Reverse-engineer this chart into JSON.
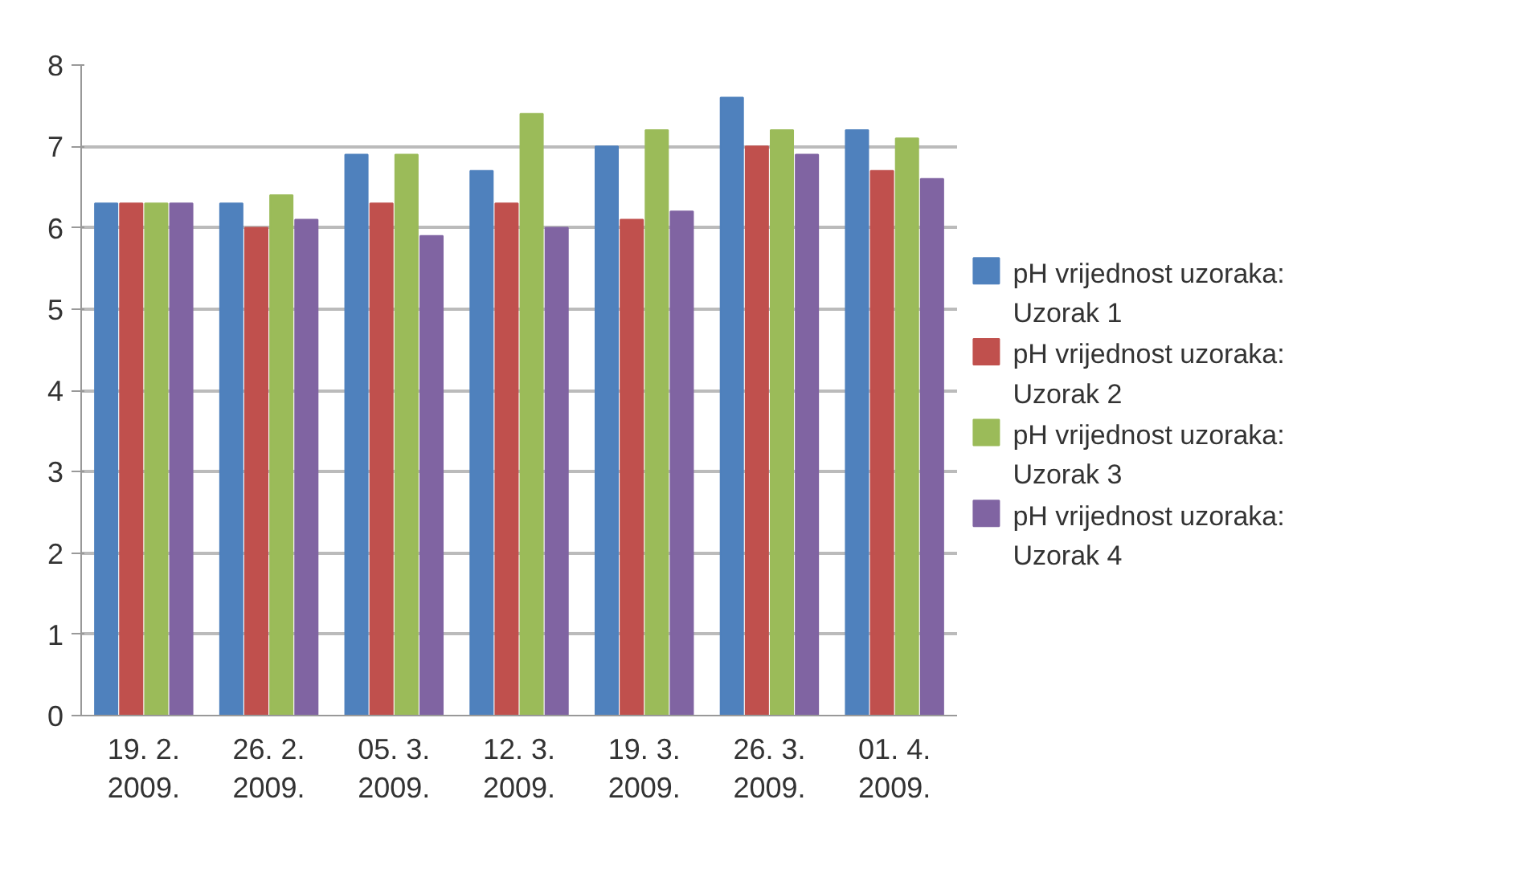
{
  "chart_data": {
    "type": "bar",
    "categories": [
      "19. 2. 2009.",
      "26. 2. 2009.",
      "05. 3. 2009.",
      "12. 3. 2009.",
      "19. 3. 2009.",
      "26. 3. 2009.",
      "01. 4. 2009."
    ],
    "series": [
      {
        "name": "pH vrijednost uzoraka: Uzorak 1",
        "color": "#4f81bd",
        "values": [
          6.3,
          6.3,
          6.9,
          6.7,
          7.0,
          7.6,
          7.2
        ]
      },
      {
        "name": "pH vrijednost uzoraka: Uzorak 2",
        "color": "#c0504d",
        "values": [
          6.3,
          6.0,
          6.3,
          6.3,
          6.1,
          7.0,
          6.7
        ]
      },
      {
        "name": "pH vrijednost uzoraka: Uzorak 3",
        "color": "#9bbb59",
        "values": [
          6.3,
          6.4,
          6.9,
          7.4,
          7.2,
          7.2,
          7.1
        ]
      },
      {
        "name": "pH vrijednost uzoraka: Uzorak 4",
        "color": "#8064a2",
        "values": [
          6.3,
          6.1,
          5.9,
          6.0,
          6.2,
          6.9,
          6.6
        ]
      }
    ],
    "ylim": [
      0,
      8
    ],
    "yticks": [
      0,
      1,
      2,
      3,
      4,
      5,
      6,
      7,
      8
    ],
    "grid": "y",
    "legend": "right"
  }
}
